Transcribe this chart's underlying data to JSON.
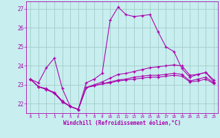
{
  "xlabel": "Windchill (Refroidissement éolien,°C)",
  "xlim": [
    -0.5,
    23.5
  ],
  "ylim": [
    21.5,
    27.4
  ],
  "yticks": [
    22,
    23,
    24,
    25,
    26,
    27
  ],
  "xticks": [
    0,
    1,
    2,
    3,
    4,
    5,
    6,
    7,
    8,
    9,
    10,
    11,
    12,
    13,
    14,
    15,
    16,
    17,
    18,
    19,
    20,
    21,
    22,
    23
  ],
  "bg_color": "#c8eef0",
  "grid_color": "#a0ccc8",
  "line_color": "#aa00aa",
  "lines": [
    [
      23.3,
      23.1,
      23.9,
      24.4,
      22.8,
      21.85,
      21.7,
      23.1,
      23.3,
      23.6,
      26.4,
      27.1,
      26.7,
      26.6,
      26.65,
      26.7,
      25.8,
      25.0,
      24.75,
      23.85,
      23.4,
      23.55,
      23.65,
      23.15
    ],
    [
      23.3,
      22.9,
      22.8,
      22.55,
      22.1,
      21.85,
      21.7,
      22.85,
      23.0,
      23.15,
      23.35,
      23.55,
      23.6,
      23.7,
      23.8,
      23.9,
      23.95,
      24.0,
      24.05,
      24.0,
      23.5,
      23.55,
      23.65,
      23.25
    ],
    [
      23.3,
      22.9,
      22.75,
      22.55,
      22.1,
      21.85,
      21.7,
      22.85,
      22.95,
      23.05,
      23.15,
      23.25,
      23.3,
      23.4,
      23.45,
      23.5,
      23.5,
      23.55,
      23.6,
      23.55,
      23.2,
      23.3,
      23.4,
      23.1
    ],
    [
      23.3,
      22.9,
      22.75,
      22.6,
      22.15,
      21.85,
      21.7,
      22.85,
      22.95,
      23.05,
      23.1,
      23.2,
      23.25,
      23.3,
      23.35,
      23.4,
      23.4,
      23.45,
      23.5,
      23.45,
      23.15,
      23.2,
      23.3,
      23.05
    ]
  ]
}
